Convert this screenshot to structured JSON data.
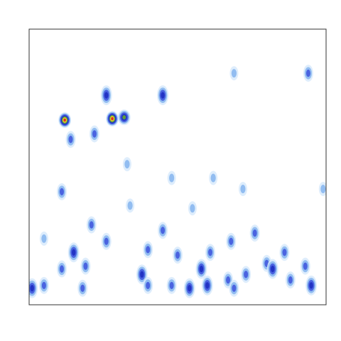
{
  "chart_data": {
    "type": "heatmap",
    "xlim": [
      0,
      1
    ],
    "ylim": [
      0,
      1
    ],
    "colors": [
      "#d6e8fb",
      "#92bdf1",
      "#4a63e0",
      "#2233c4",
      "#5f9c3c",
      "#e2d232",
      "#e23322"
    ],
    "x": [
      0.12,
      0.28,
      0.32,
      0.26,
      0.45,
      0.01,
      0.05,
      0.11,
      0.15,
      0.19,
      0.18,
      0.38,
      0.4,
      0.48,
      0.54,
      0.58,
      0.61,
      0.6,
      0.67,
      0.69,
      0.73,
      0.76,
      0.8,
      0.82,
      0.86,
      0.88,
      0.93,
      0.95,
      0.68,
      0.55,
      0.34,
      0.45,
      0.11,
      0.21,
      0.33,
      0.48,
      0.62,
      0.72,
      0.99,
      0.94,
      0.69,
      0.14,
      0.22,
      0.4,
      0.26,
      0.05,
      0.5
    ],
    "y": [
      0.67,
      0.675,
      0.68,
      0.76,
      0.76,
      0.06,
      0.07,
      0.13,
      0.19,
      0.14,
      0.06,
      0.11,
      0.07,
      0.07,
      0.06,
      0.13,
      0.19,
      0.07,
      0.09,
      0.06,
      0.11,
      0.26,
      0.15,
      0.13,
      0.19,
      0.09,
      0.14,
      0.07,
      0.23,
      0.35,
      0.36,
      0.27,
      0.41,
      0.29,
      0.51,
      0.46,
      0.46,
      0.42,
      0.42,
      0.84,
      0.84,
      0.6,
      0.62,
      0.2,
      0.23,
      0.24,
      0.18
    ],
    "values": [
      1.0,
      1.0,
      0.7,
      0.45,
      0.45,
      0.45,
      0.3,
      0.4,
      0.45,
      0.3,
      0.4,
      0.45,
      0.3,
      0.4,
      0.55,
      0.45,
      0.4,
      0.45,
      0.3,
      0.4,
      0.3,
      0.3,
      0.4,
      0.45,
      0.3,
      0.3,
      0.4,
      0.55,
      0.3,
      0.25,
      0.2,
      0.3,
      0.3,
      0.3,
      0.25,
      0.2,
      0.25,
      0.2,
      0.25,
      0.3,
      0.2,
      0.3,
      0.3,
      0.4,
      0.3,
      0.25,
      0.3
    ]
  }
}
